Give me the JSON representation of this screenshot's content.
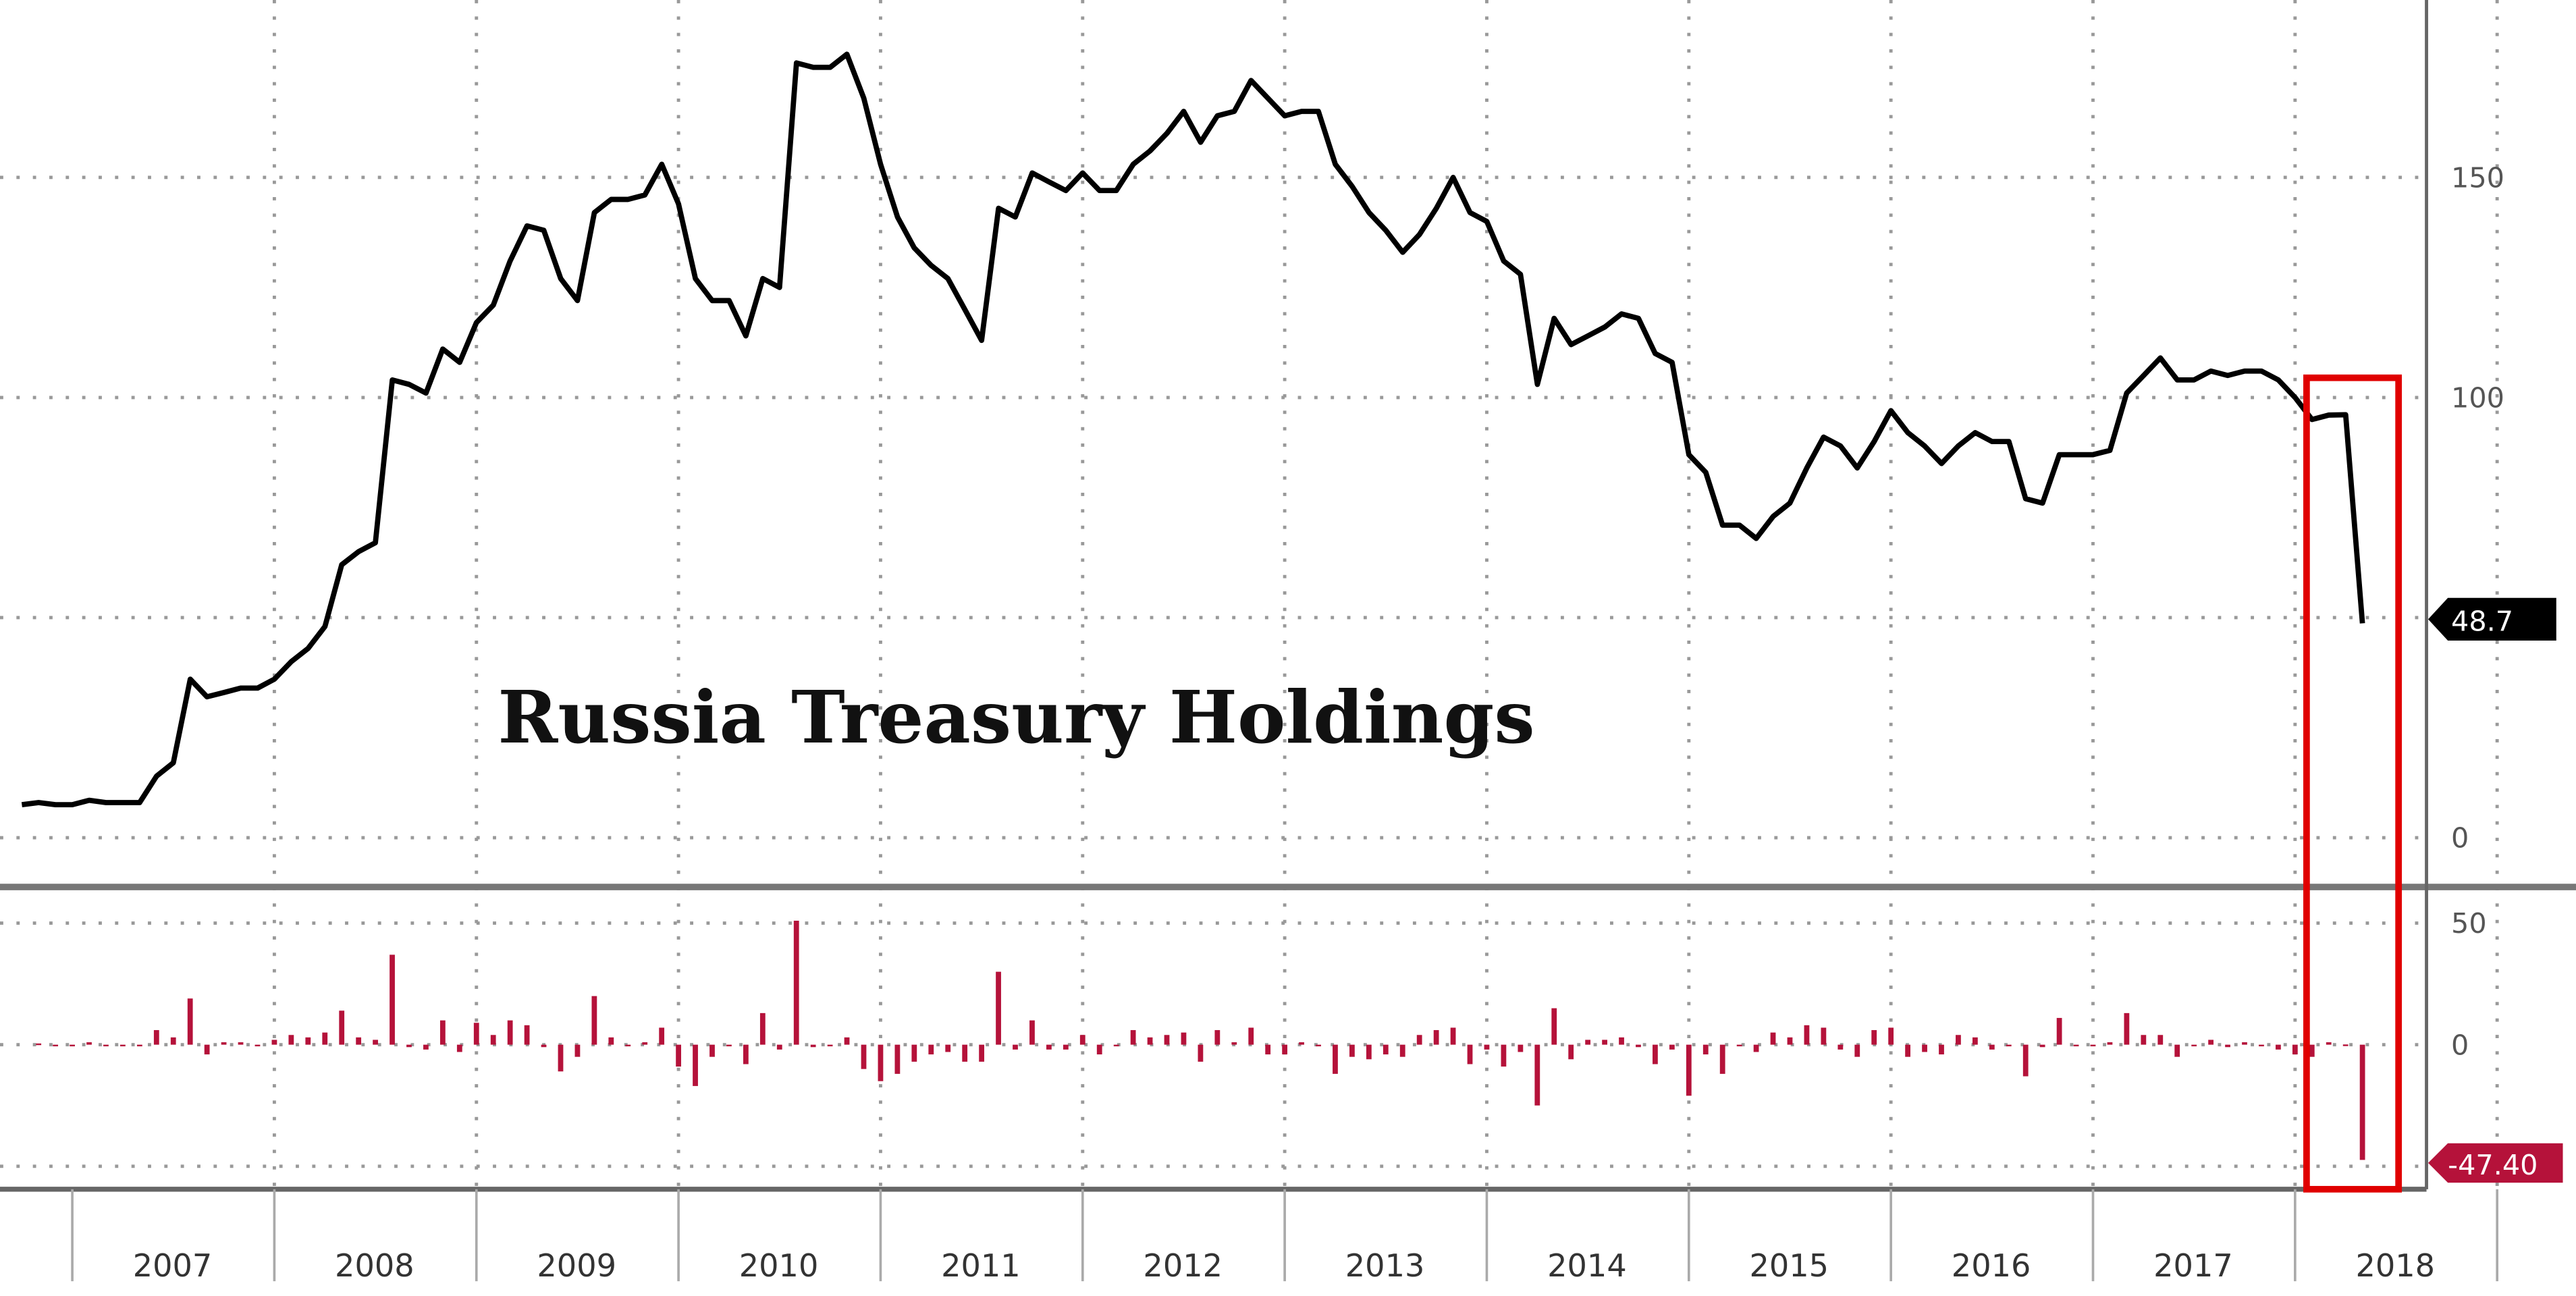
{
  "chart_data": [
    {
      "type": "line",
      "title": "Russia Treasury Holdings",
      "x_start": "2006-10",
      "x_frequency": "monthly",
      "values": [
        7.5,
        8,
        7.5,
        7.5,
        8.5,
        8,
        8,
        8,
        14,
        17,
        36,
        32,
        33,
        34,
        34,
        36,
        40,
        43,
        48,
        62,
        65,
        67,
        104,
        103,
        101,
        111,
        108,
        117,
        121,
        131,
        139,
        138,
        127,
        122,
        142,
        145,
        145,
        146,
        153,
        144,
        127,
        122,
        122,
        114,
        127,
        125,
        176,
        175,
        175,
        178,
        168,
        153,
        141,
        134,
        130,
        127,
        120,
        113,
        143,
        141,
        151,
        149,
        147,
        151,
        147,
        147,
        153,
        156,
        160,
        165,
        158,
        164,
        165,
        172,
        168,
        164,
        165,
        165,
        153,
        148,
        142,
        138,
        133,
        137,
        143,
        150,
        142,
        140,
        131,
        128,
        103,
        118,
        112,
        114,
        116,
        119,
        118,
        110,
        108,
        87,
        83,
        71,
        71,
        68,
        73,
        76,
        84,
        91,
        89,
        84,
        90,
        97,
        92,
        89,
        85,
        89,
        92,
        90,
        90,
        77,
        76,
        87,
        87,
        87,
        88,
        101,
        105,
        109,
        104,
        104,
        106,
        105,
        106,
        106,
        104,
        100,
        95,
        96,
        96.1,
        48.7
      ],
      "ylim": [
        0,
        185
      ],
      "yticks": [
        "0",
        "100",
        "150"
      ],
      "last_value_label": "48.7",
      "grid": true,
      "line_color": "#000000"
    },
    {
      "type": "bar",
      "description_of_values": "monthly change of holdings",
      "ylim": [
        -50,
        60
      ],
      "yticks": [
        "50",
        "0"
      ],
      "last_value_label": "-47.40",
      "bar_color": "#b5123a"
    }
  ],
  "x_axis": {
    "years": [
      "2007",
      "2008",
      "2009",
      "2010",
      "2011",
      "2012",
      "2013",
      "2014",
      "2015",
      "2016",
      "2017",
      "2018"
    ]
  },
  "highlight": {
    "color": "#e00000"
  }
}
